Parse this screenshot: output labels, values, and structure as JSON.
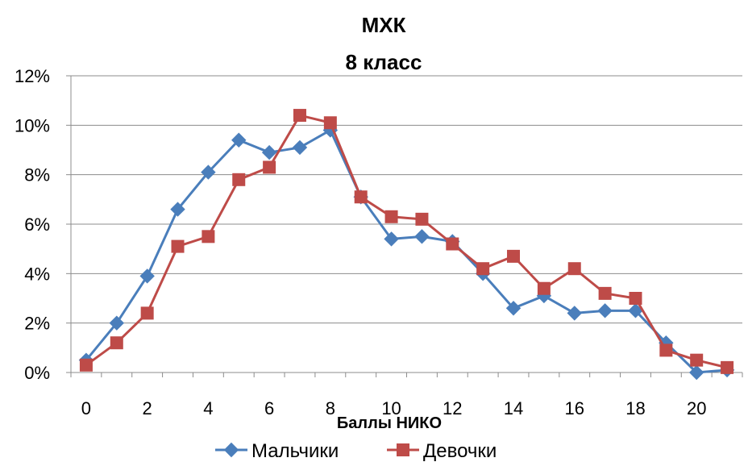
{
  "chart_data": {
    "type": "line",
    "title": "МХК",
    "subtitle": "8 класс",
    "xlabel": "Баллы НИКО",
    "ylabel": "",
    "x": [
      0,
      1,
      2,
      3,
      4,
      5,
      6,
      7,
      8,
      9,
      10,
      11,
      12,
      13,
      14,
      15,
      16,
      17,
      18,
      19,
      20,
      21
    ],
    "xlim": [
      0,
      21
    ],
    "ylim": [
      0,
      12
    ],
    "y_unit": "%",
    "y_ticks": [
      "0%",
      "2%",
      "4%",
      "6%",
      "8%",
      "10%",
      "12%"
    ],
    "x_ticks": [
      "0",
      "2",
      "4",
      "6",
      "8",
      "10",
      "12",
      "14",
      "16",
      "18",
      "20"
    ],
    "grid": true,
    "legend_position": "bottom",
    "series": [
      {
        "name": "Мальчики",
        "color": "#4a7ebb",
        "marker": "diamond",
        "values": [
          0.5,
          2.0,
          3.9,
          6.6,
          8.1,
          9.4,
          8.9,
          9.1,
          9.8,
          7.1,
          5.4,
          5.5,
          5.3,
          4.0,
          2.6,
          3.1,
          2.4,
          2.5,
          2.5,
          1.2,
          0.0,
          0.1
        ]
      },
      {
        "name": "Девочки",
        "color": "#be4b48",
        "marker": "square",
        "values": [
          0.3,
          1.2,
          2.4,
          5.1,
          5.5,
          7.8,
          8.3,
          10.4,
          10.1,
          7.1,
          6.3,
          6.2,
          5.2,
          4.2,
          4.7,
          3.4,
          4.2,
          3.2,
          3.0,
          0.9,
          0.5,
          0.2
        ]
      }
    ]
  }
}
